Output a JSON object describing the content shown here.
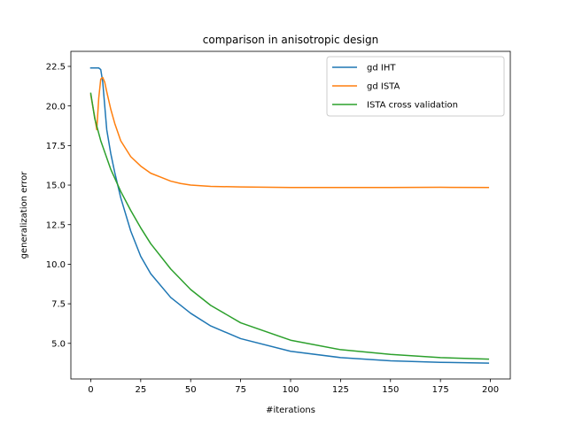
{
  "chart_data": {
    "type": "line",
    "title": "comparison in anisotropic design",
    "xlabel": "#iterations",
    "ylabel": "generalization error",
    "xlim": [
      -9.95,
      209.95
    ],
    "ylim": [
      2.75,
      23.45
    ],
    "xticks": [
      0,
      25,
      50,
      75,
      100,
      125,
      150,
      175,
      200
    ],
    "yticks": [
      5.0,
      7.5,
      10.0,
      12.5,
      15.0,
      17.5,
      20.0,
      22.5
    ],
    "xtick_labels": [
      "0",
      "25",
      "50",
      "75",
      "100",
      "125",
      "150",
      "175",
      "200"
    ],
    "ytick_labels": [
      "5.0",
      "7.5",
      "10.0",
      "12.5",
      "15.0",
      "17.5",
      "20.0",
      "22.5"
    ],
    "grid": false,
    "legend_position": "top-right",
    "series": [
      {
        "name": "gd IHT",
        "color": "#1f77b4",
        "x": [
          0,
          4,
          5,
          6,
          7,
          8,
          10,
          12,
          15,
          20,
          25,
          30,
          40,
          50,
          60,
          75,
          100,
          125,
          150,
          175,
          199
        ],
        "y": [
          22.4,
          22.4,
          22.3,
          21.5,
          20.0,
          18.5,
          17.0,
          15.8,
          14.2,
          12.1,
          10.5,
          9.4,
          7.9,
          6.9,
          6.1,
          5.3,
          4.5,
          4.1,
          3.9,
          3.8,
          3.75
        ]
      },
      {
        "name": "gd ISTA",
        "color": "#ff7f0e",
        "x": [
          0,
          1,
          2,
          3,
          4,
          5,
          6,
          7,
          8,
          10,
          12,
          15,
          20,
          25,
          30,
          35,
          40,
          45,
          50,
          60,
          75,
          100,
          125,
          150,
          175,
          199
        ],
        "y": [
          20.7,
          20.0,
          19.3,
          18.5,
          20.5,
          21.7,
          21.8,
          21.5,
          20.9,
          19.8,
          18.9,
          17.8,
          16.8,
          16.2,
          15.75,
          15.5,
          15.25,
          15.1,
          15.0,
          14.92,
          14.88,
          14.85,
          14.85,
          14.85,
          14.86,
          14.85
        ]
      },
      {
        "name": "ISTA cross validation",
        "color": "#2ca02c",
        "x": [
          0,
          2,
          5,
          10,
          15,
          20,
          25,
          30,
          40,
          50,
          60,
          75,
          100,
          125,
          150,
          175,
          199
        ],
        "y": [
          20.8,
          19.2,
          17.8,
          16.0,
          14.6,
          13.4,
          12.3,
          11.3,
          9.7,
          8.4,
          7.4,
          6.3,
          5.2,
          4.6,
          4.3,
          4.1,
          4.0
        ]
      }
    ]
  }
}
